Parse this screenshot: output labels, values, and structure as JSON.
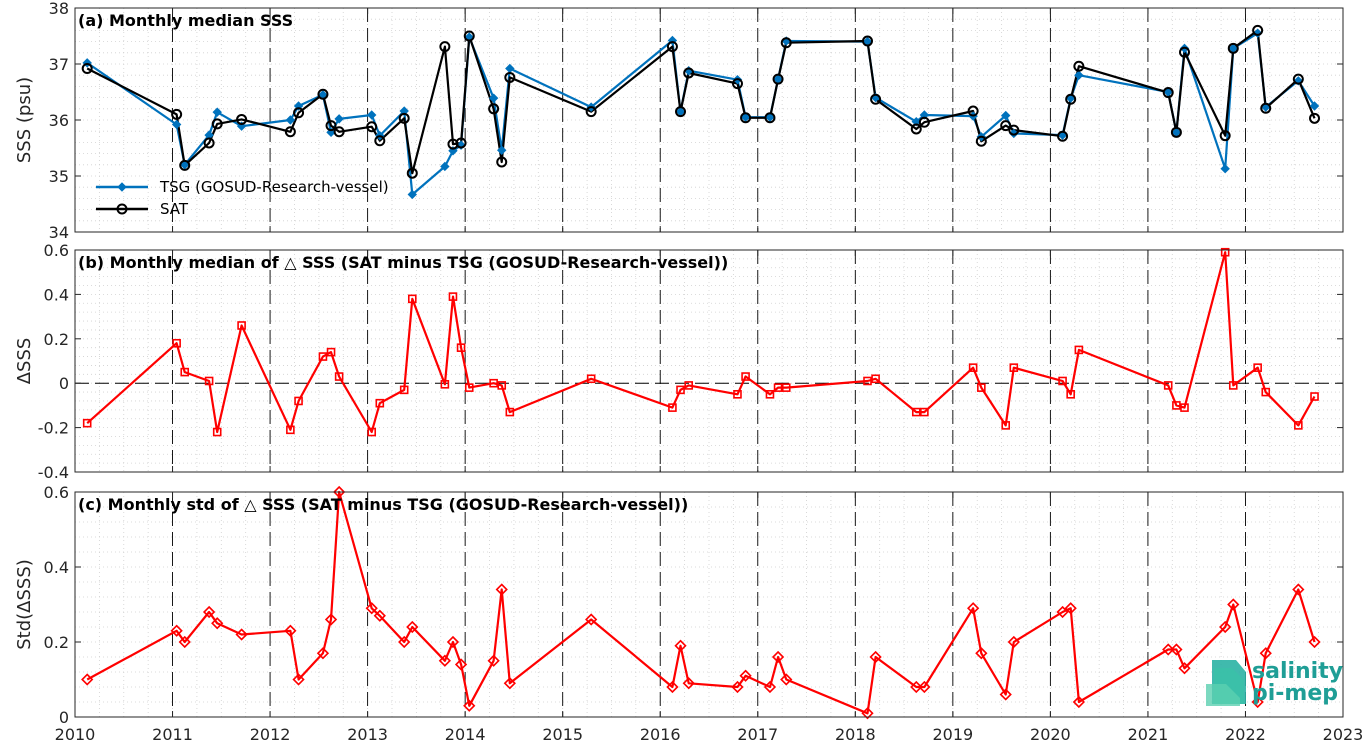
{
  "logo": {
    "line1": "salinity",
    "line2": "pi-mep",
    "color": "#1f9e96"
  },
  "chart_data": [
    {
      "type": "line",
      "title": "(a) Monthly median SSS",
      "ylabel": "SSS (psu)",
      "ylim": [
        34,
        38
      ],
      "yticks": [
        34,
        35,
        36,
        37,
        38
      ],
      "xlim": [
        2010,
        2023
      ],
      "xticks": [
        2010,
        2011,
        2012,
        2013,
        2014,
        2015,
        2016,
        2017,
        2018,
        2019,
        2020,
        2021,
        2022,
        2023
      ],
      "grid": "minor-dotted",
      "legend_position": "bottom-left",
      "series": [
        {
          "name": "TSG (GOSUD-Research-vessel)",
          "color": "#0072bd",
          "marker": "diamond",
          "x": [
            2010.125,
            2011.042,
            2011.125,
            2011.375,
            2011.458,
            2011.708,
            2012.208,
            2012.292,
            2012.542,
            2012.625,
            2012.708,
            2013.042,
            2013.125,
            2013.375,
            2013.458,
            2013.792,
            2013.875,
            2013.958,
            2014.042,
            2014.292,
            2014.375,
            2014.458,
            2015.292,
            2016.125,
            2016.208,
            2016.292,
            2016.792,
            2016.875,
            2017.125,
            2017.208,
            2017.292,
            2018.125,
            2018.208,
            2018.625,
            2018.708,
            2019.208,
            2019.292,
            2019.542,
            2019.625,
            2020.125,
            2020.208,
            2020.292,
            2021.208,
            2021.292,
            2021.375,
            2021.792,
            2021.875,
            2022.125,
            2022.208,
            2022.542,
            2022.708
          ],
          "values": [
            37.02,
            35.92,
            35.2,
            35.73,
            36.14,
            35.89,
            36.0,
            36.25,
            36.45,
            35.78,
            36.02,
            36.09,
            35.72,
            36.16,
            34.67,
            35.17,
            35.45,
            35.55,
            37.48,
            36.39,
            35.46,
            36.92,
            36.23,
            37.42,
            36.15,
            36.88,
            36.72,
            36.05,
            36.05,
            36.73,
            37.41,
            37.4,
            36.4,
            35.97,
            36.09,
            36.07,
            35.7,
            36.08,
            35.76,
            35.73,
            36.39,
            36.8,
            36.5,
            35.78,
            37.28,
            35.13,
            37.28,
            37.55,
            36.23,
            36.7,
            36.25
          ]
        },
        {
          "name": "SAT",
          "color": "#000000",
          "marker": "circle",
          "x": [
            2010.125,
            2011.042,
            2011.125,
            2011.375,
            2011.458,
            2011.708,
            2012.208,
            2012.292,
            2012.542,
            2012.625,
            2012.708,
            2013.042,
            2013.125,
            2013.375,
            2013.458,
            2013.792,
            2013.875,
            2013.958,
            2014.042,
            2014.292,
            2014.375,
            2014.458,
            2015.292,
            2016.125,
            2016.208,
            2016.292,
            2016.792,
            2016.875,
            2017.125,
            2017.208,
            2017.292,
            2018.125,
            2018.208,
            2018.625,
            2018.708,
            2019.208,
            2019.292,
            2019.542,
            2019.625,
            2020.125,
            2020.208,
            2020.292,
            2021.208,
            2021.292,
            2021.375,
            2021.792,
            2021.875,
            2022.125,
            2022.208,
            2022.542,
            2022.708
          ],
          "values": [
            36.92,
            36.1,
            35.19,
            35.59,
            35.93,
            36.01,
            35.79,
            36.13,
            36.46,
            35.9,
            35.79,
            35.88,
            35.63,
            36.03,
            35.05,
            37.31,
            35.57,
            35.59,
            37.5,
            36.2,
            35.25,
            36.76,
            36.15,
            37.31,
            36.15,
            36.84,
            36.65,
            36.04,
            36.04,
            36.73,
            37.38,
            37.41,
            36.37,
            35.84,
            35.96,
            36.16,
            35.62,
            35.9,
            35.82,
            35.71,
            36.37,
            36.96,
            36.49,
            35.78,
            37.21,
            35.72,
            37.28,
            37.6,
            36.21,
            36.73,
            36.03
          ]
        }
      ]
    },
    {
      "type": "line",
      "title": "(b) Monthly median of △ SSS (SAT minus TSG (GOSUD-Research-vessel))",
      "ylabel": "ΔSSS",
      "ylim": [
        -0.4,
        0.6
      ],
      "yticks": [
        -0.4,
        -0.2,
        0,
        0.2,
        0.4,
        0.6
      ],
      "xlim": [
        2010,
        2023
      ],
      "zero_line": true,
      "series": [
        {
          "color": "#ff0000",
          "marker": "square",
          "x": [
            2010.125,
            2011.042,
            2011.125,
            2011.375,
            2011.458,
            2011.708,
            2012.208,
            2012.292,
            2012.542,
            2012.625,
            2012.708,
            2013.042,
            2013.125,
            2013.375,
            2013.458,
            2013.792,
            2013.875,
            2013.958,
            2014.042,
            2014.292,
            2014.375,
            2014.458,
            2015.292,
            2016.125,
            2016.208,
            2016.292,
            2016.792,
            2016.875,
            2017.125,
            2017.208,
            2017.292,
            2018.125,
            2018.208,
            2018.625,
            2018.708,
            2019.208,
            2019.292,
            2019.542,
            2019.625,
            2020.125,
            2020.208,
            2020.292,
            2021.208,
            2021.292,
            2021.375,
            2021.792,
            2021.875,
            2022.125,
            2022.208,
            2022.542,
            2022.708
          ],
          "values": [
            -0.18,
            0.18,
            0.05,
            0.01,
            -0.22,
            0.26,
            -0.21,
            -0.08,
            0.12,
            0.14,
            0.03,
            -0.22,
            -0.09,
            -0.03,
            0.38,
            -0.005,
            0.39,
            0.16,
            -0.02,
            0.0,
            -0.01,
            -0.13,
            0.02,
            -0.11,
            -0.03,
            -0.01,
            -0.05,
            0.03,
            -0.05,
            -0.02,
            -0.02,
            0.01,
            0.02,
            -0.13,
            -0.13,
            0.07,
            -0.02,
            -0.19,
            0.07,
            0.01,
            -0.05,
            0.15,
            -0.01,
            -0.1,
            -0.11,
            0.59,
            -0.01,
            0.07,
            -0.04,
            -0.19,
            -0.06
          ]
        }
      ]
    },
    {
      "type": "line",
      "title": "(c) Monthly std of △ SSS (SAT minus TSG (GOSUD-Research-vessel))",
      "ylabel": "Std(ΔSSS)",
      "ylim": [
        0,
        0.6
      ],
      "yticks": [
        0,
        0.2,
        0.4,
        0.6
      ],
      "xlim": [
        2010,
        2023
      ],
      "series": [
        {
          "color": "#ff0000",
          "marker": "diamond",
          "x": [
            2010.125,
            2011.042,
            2011.125,
            2011.375,
            2011.458,
            2011.708,
            2012.208,
            2012.292,
            2012.542,
            2012.625,
            2012.708,
            2013.042,
            2013.125,
            2013.375,
            2013.458,
            2013.792,
            2013.875,
            2013.958,
            2014.042,
            2014.292,
            2014.375,
            2014.458,
            2015.292,
            2016.125,
            2016.208,
            2016.292,
            2016.792,
            2016.875,
            2017.125,
            2017.208,
            2017.292,
            2018.125,
            2018.208,
            2018.625,
            2018.708,
            2019.208,
            2019.292,
            2019.542,
            2019.625,
            2020.125,
            2020.208,
            2020.292,
            2021.208,
            2021.292,
            2021.375,
            2021.792,
            2021.875,
            2022.125,
            2022.208,
            2022.542,
            2022.708
          ],
          "values": [
            0.1,
            0.23,
            0.2,
            0.28,
            0.25,
            0.22,
            0.23,
            0.1,
            0.17,
            0.26,
            0.6,
            0.29,
            0.27,
            0.2,
            0.24,
            0.15,
            0.2,
            0.14,
            0.03,
            0.15,
            0.34,
            0.09,
            0.26,
            0.08,
            0.19,
            0.09,
            0.08,
            0.11,
            0.08,
            0.16,
            0.1,
            0.01,
            0.16,
            0.08,
            0.08,
            0.29,
            0.17,
            0.06,
            0.2,
            0.28,
            0.29,
            0.04,
            0.18,
            0.18,
            0.13,
            0.24,
            0.3,
            0.04,
            0.17,
            0.34,
            0.2
          ]
        }
      ]
    }
  ]
}
